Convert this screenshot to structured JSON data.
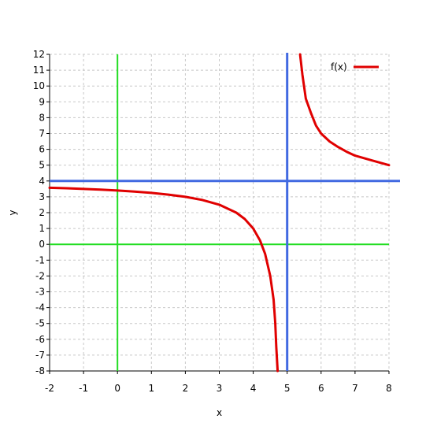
{
  "chart_data": {
    "type": "line",
    "title": "",
    "xlabel": "x",
    "ylabel": "y",
    "xlim": [
      -2,
      8
    ],
    "ylim": [
      -8,
      12
    ],
    "xticks": [
      -2,
      -1,
      0,
      1,
      2,
      3,
      4,
      5,
      6,
      7,
      8
    ],
    "yticks": [
      -8,
      -7,
      -6,
      -5,
      -4,
      -3,
      -2,
      -1,
      0,
      1,
      2,
      3,
      4,
      5,
      6,
      7,
      8,
      9,
      10,
      11,
      12
    ],
    "grid": true,
    "legend": "top-right",
    "series": [
      {
        "name": "f(x)",
        "color": "#e00000",
        "segments": [
          [
            [
              -2,
              3.57
            ],
            [
              -1.5,
              3.54
            ],
            [
              -1,
              3.5
            ],
            [
              -0.5,
              3.46
            ],
            [
              0,
              3.4
            ],
            [
              0.5,
              3.33
            ],
            [
              1,
              3.25
            ],
            [
              1.5,
              3.14
            ],
            [
              2,
              3.0
            ],
            [
              2.5,
              2.8
            ],
            [
              3,
              2.5
            ],
            [
              3.5,
              2.0
            ],
            [
              3.75,
              1.6
            ],
            [
              4,
              1.0
            ],
            [
              4.2,
              0.25
            ],
            [
              4.35,
              -0.6
            ],
            [
              4.5,
              -2.0
            ],
            [
              4.6,
              -3.5
            ],
            [
              4.65,
              -5.0
            ],
            [
              4.68,
              -6.5
            ],
            [
              4.72,
              -8.0
            ]
          ],
          [
            [
              5.38,
              12.0
            ],
            [
              5.45,
              10.7
            ],
            [
              5.55,
              9.2
            ],
            [
              5.7,
              8.3
            ],
            [
              5.85,
              7.5
            ],
            [
              6,
              7.0
            ],
            [
              6.25,
              6.5
            ],
            [
              6.5,
              6.15
            ],
            [
              6.75,
              5.85
            ],
            [
              7,
              5.6
            ],
            [
              7.5,
              5.3
            ],
            [
              8,
              5.0
            ]
          ]
        ]
      }
    ],
    "reference_lines": [
      {
        "orientation": "vertical",
        "value": 0,
        "color": "#22dd22"
      },
      {
        "orientation": "horizontal",
        "value": 0,
        "color": "#22dd22"
      },
      {
        "orientation": "vertical",
        "value": 5,
        "color": "#4169e1"
      },
      {
        "orientation": "horizontal",
        "value": 4,
        "color": "#4169e1"
      }
    ]
  }
}
